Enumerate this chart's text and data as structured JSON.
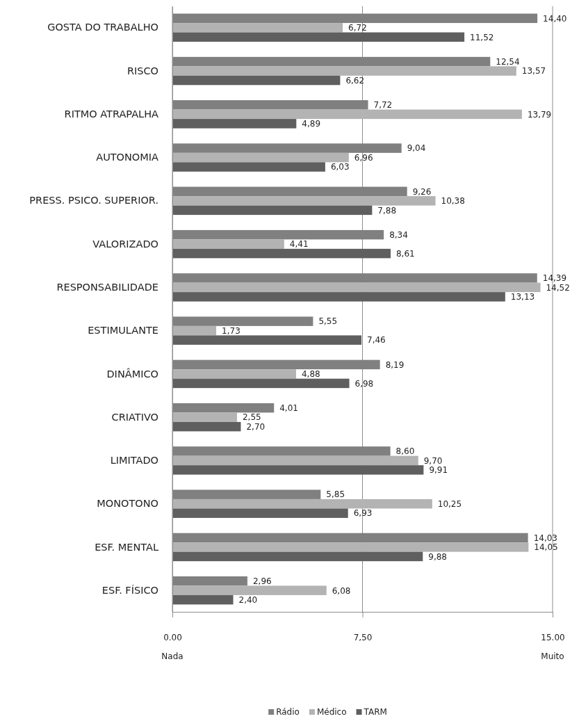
{
  "chart_data": {
    "type": "bar",
    "orientation": "horizontal",
    "categories": [
      "GOSTA DO TRABALHO",
      "RISCO",
      "RITMO ATRAPALHA",
      "AUTONOMIA",
      "PRESS. PSICO. SUPERIOR.",
      "VALORIZADO",
      "RESPONSABILIDADE",
      "ESTIMULANTE",
      "DINÂMICO",
      "CRIATIVO",
      "LIMITADO",
      "MONOTONO",
      "ESF. MENTAL",
      "ESF. FÍSICO"
    ],
    "series": [
      {
        "name": "Rádio",
        "color": "#808080",
        "values": [
          14.4,
          12.54,
          7.72,
          9.04,
          9.26,
          8.34,
          14.39,
          5.55,
          8.19,
          4.01,
          8.6,
          5.85,
          14.03,
          2.96
        ],
        "value_labels": [
          "14,40",
          "12,54",
          "7,72",
          "9,04",
          "9,26",
          "8,34",
          "14,39",
          "5,55",
          "8,19",
          "4,01",
          "8,60",
          "5,85",
          "14,03",
          "2,96"
        ]
      },
      {
        "name": "Médico",
        "color": "#b3b3b3",
        "values": [
          6.72,
          13.57,
          13.79,
          6.96,
          10.38,
          4.41,
          14.52,
          1.73,
          4.88,
          2.55,
          9.7,
          10.25,
          14.05,
          6.08
        ],
        "value_labels": [
          "6,72",
          "13,57",
          "13,79",
          "6,96",
          "10,38",
          "4,41",
          "14,52",
          "1,73",
          "4,88",
          "2,55",
          "9,70",
          "10,25",
          "14,05",
          "6,08"
        ]
      },
      {
        "name": "TARM",
        "color": "#5f5f5f",
        "values": [
          11.52,
          6.62,
          4.89,
          6.03,
          7.88,
          8.61,
          13.13,
          7.46,
          6.98,
          2.7,
          9.91,
          6.93,
          9.88,
          2.4
        ],
        "value_labels": [
          "11,52",
          "6,62",
          "4,89",
          "6,03",
          "7,88",
          "8,61",
          "13,13",
          "7,46",
          "6,98",
          "2,70",
          "9,91",
          "6,93",
          "9,88",
          "2,40"
        ]
      }
    ],
    "xlim": [
      0,
      15
    ],
    "xticks": [
      {
        "value": 0,
        "label": "0.00"
      },
      {
        "value": 7.5,
        "label": "7,50"
      },
      {
        "value": 15,
        "label": "15.00"
      }
    ],
    "annotations": [
      "Nada",
      "Muito"
    ],
    "grid": "x",
    "legend": "bottom"
  }
}
